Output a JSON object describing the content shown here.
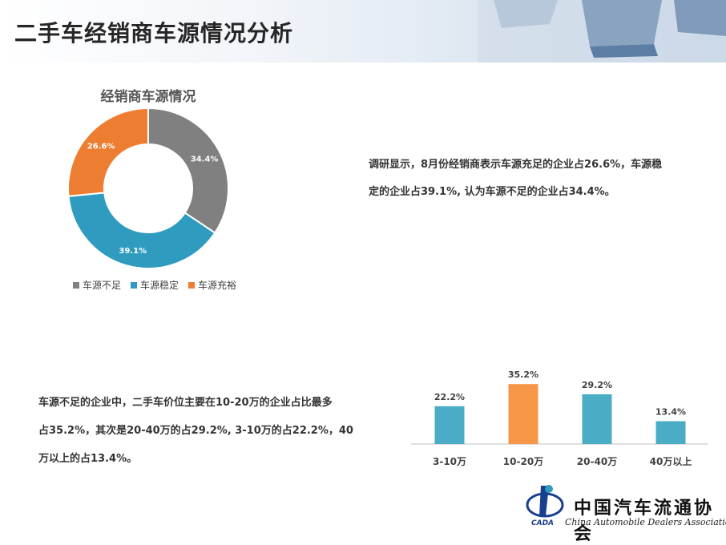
{
  "header": {
    "title": "二手车经销商车源情况分析"
  },
  "donut": {
    "title": "经销商车源情况",
    "legend": [
      "车源不足",
      "车源稳定",
      "车源充裕"
    ]
  },
  "paragraph1": {
    "line1": "调研显示，8月份经销商表示车源充足的企业占26.6%，车源稳",
    "line2": "定的企业占39.1%, 认为车源不足的企业占34.4%。"
  },
  "paragraph2": {
    "line1": "车源不足的企业中，二手车价位主要在10-20万的企业占比最多",
    "line2": "占35.2%，其次是20-40万的占29.2%, 3-10万的占22.2%，40",
    "line3": "万以上的占13.4%。"
  },
  "logo": {
    "cn": "中国汽车流通协会",
    "en": "China Automobile Dealers Association",
    "mark": "CADA"
  },
  "chart_data": [
    {
      "type": "pie",
      "title": "经销商车源情况",
      "categories": [
        "车源不足",
        "车源稳定",
        "车源充裕"
      ],
      "values": [
        34.4,
        39.1,
        26.6
      ],
      "labels": [
        "34.4%",
        "39.1%",
        "26.6%"
      ],
      "colors": [
        "#808080",
        "#2e9bbf",
        "#ed7d31"
      ],
      "legend": "bottom"
    },
    {
      "type": "bar",
      "categories": [
        "3-10万",
        "10-20万",
        "20-40万",
        "40万以上"
      ],
      "values": [
        22.2,
        35.2,
        29.2,
        13.4
      ],
      "labels": [
        "22.2%",
        "35.2%",
        "29.2%",
        "13.4%"
      ],
      "colors": [
        "#4bacc6",
        "#f79646",
        "#4bacc6",
        "#4bacc6"
      ],
      "ylim": [
        0,
        40
      ]
    }
  ]
}
